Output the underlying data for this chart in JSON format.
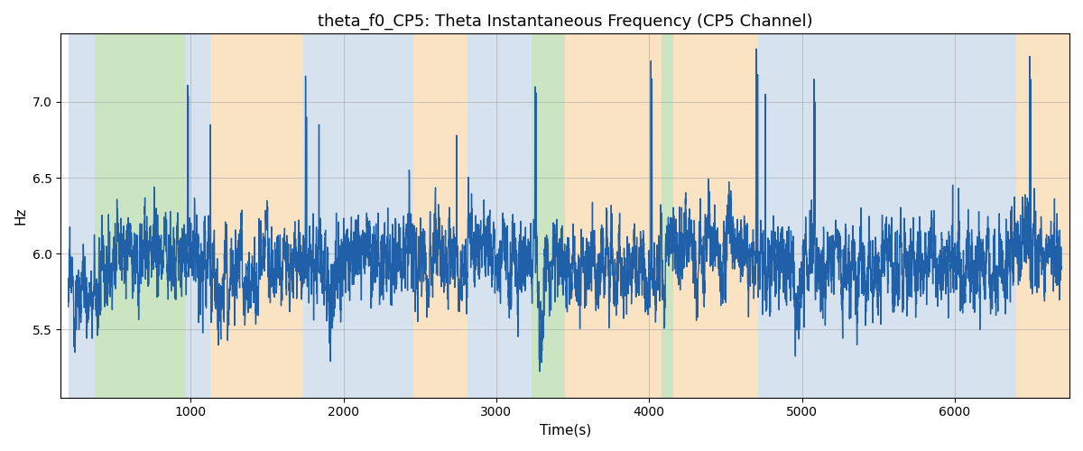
{
  "title": "theta_f0_CP5: Theta Instantaneous Frequency (CP5 Channel)",
  "xlabel": "Time(s)",
  "ylabel": "Hz",
  "xlim": [
    150,
    6750
  ],
  "ylim": [
    5.05,
    7.45
  ],
  "line_color": "#2060a8",
  "line_width": 1.0,
  "bg_bands": [
    {
      "xmin": 200,
      "xmax": 375,
      "color": "#aec6dc",
      "alpha": 0.5
    },
    {
      "xmin": 375,
      "xmax": 970,
      "color": "#98cc88",
      "alpha": 0.5
    },
    {
      "xmin": 970,
      "xmax": 1130,
      "color": "#aec6dc",
      "alpha": 0.5
    },
    {
      "xmin": 1130,
      "xmax": 1735,
      "color": "#f5c888",
      "alpha": 0.5
    },
    {
      "xmin": 1735,
      "xmax": 2460,
      "color": "#aec6dc",
      "alpha": 0.5
    },
    {
      "xmin": 2460,
      "xmax": 2810,
      "color": "#f5c888",
      "alpha": 0.5
    },
    {
      "xmin": 2810,
      "xmax": 3230,
      "color": "#aec6dc",
      "alpha": 0.5
    },
    {
      "xmin": 3230,
      "xmax": 3450,
      "color": "#98cc88",
      "alpha": 0.5
    },
    {
      "xmin": 3450,
      "xmax": 4080,
      "color": "#f5c888",
      "alpha": 0.5
    },
    {
      "xmin": 4080,
      "xmax": 4160,
      "color": "#98cc88",
      "alpha": 0.5
    },
    {
      "xmin": 4160,
      "xmax": 4710,
      "color": "#f5c888",
      "alpha": 0.5
    },
    {
      "xmin": 4710,
      "xmax": 6230,
      "color": "#aec6dc",
      "alpha": 0.5
    },
    {
      "xmin": 6230,
      "xmax": 6400,
      "color": "#aec6dc",
      "alpha": 0.5
    },
    {
      "xmin": 6400,
      "xmax": 6750,
      "color": "#f5c888",
      "alpha": 0.5
    }
  ],
  "grid_color": "#999999",
  "grid_alpha": 0.5,
  "seed": 12345,
  "t_start": 200,
  "t_end": 6700,
  "base_freq": 5.95,
  "figsize": [
    12.0,
    5.0
  ],
  "dpi": 100,
  "title_fontsize": 13,
  "axis_fontsize": 11
}
